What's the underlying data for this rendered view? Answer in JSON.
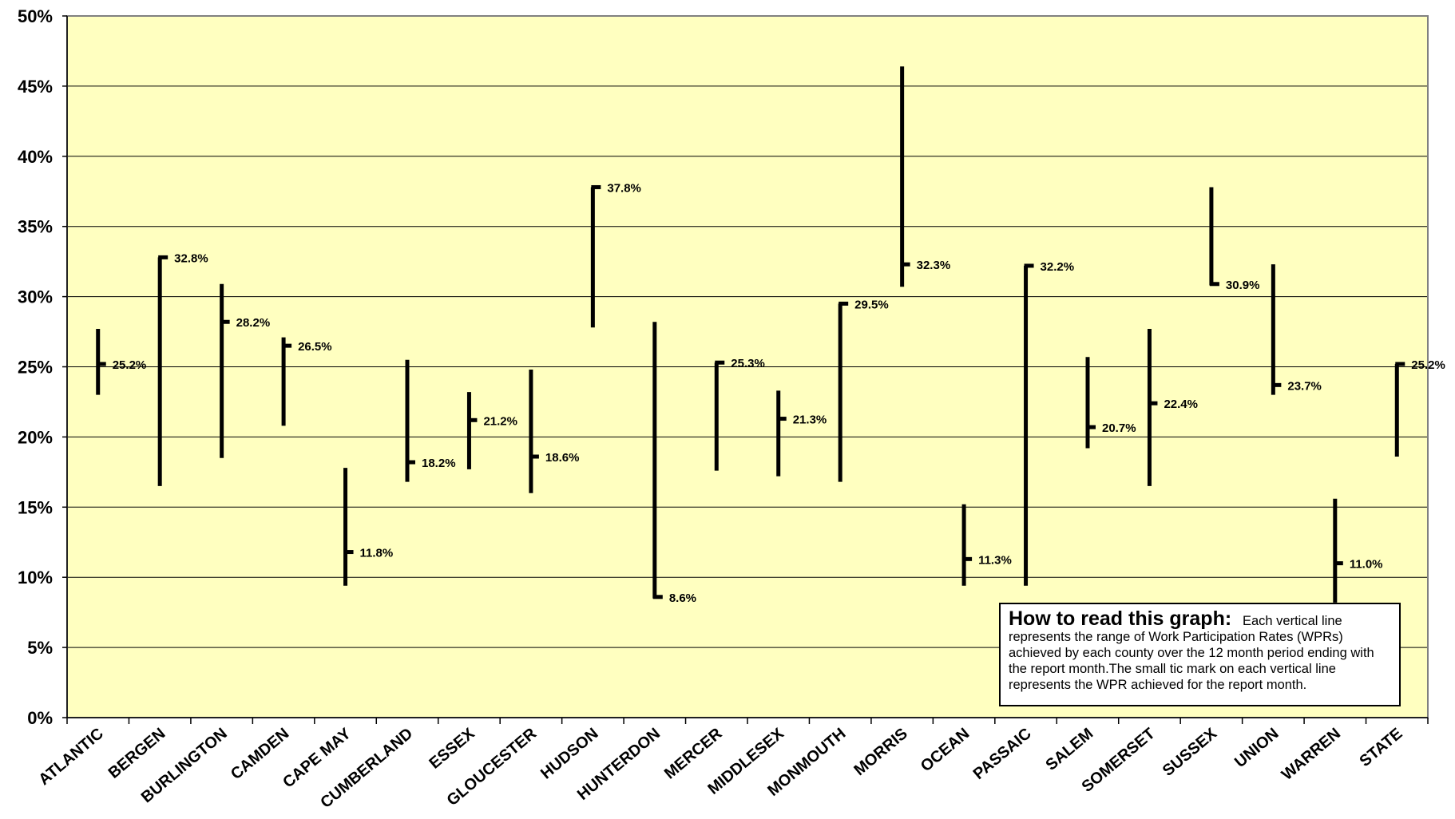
{
  "chart_data": {
    "type": "range",
    "title": "",
    "xlabel": "",
    "ylabel": "",
    "ylim": [
      0,
      50
    ],
    "y_ticks": [
      "0%",
      "5%",
      "10%",
      "15%",
      "20%",
      "25%",
      "30%",
      "35%",
      "40%",
      "45%",
      "50%"
    ],
    "grid": true,
    "categories": [
      "ATLANTIC",
      "BERGEN",
      "BURLINGTON",
      "CAMDEN",
      "CAPE MAY",
      "CUMBERLAND",
      "ESSEX",
      "GLOUCESTER",
      "HUDSON",
      "HUNTERDON",
      "MERCER",
      "MIDDLESEX",
      "MONMOUTH",
      "MORRIS",
      "OCEAN",
      "PASSAIC",
      "SALEM",
      "SOMERSET",
      "SUSSEX",
      "UNION",
      "WARREN",
      "STATE"
    ],
    "series": [
      {
        "name": "range_low",
        "values": [
          23.0,
          16.5,
          18.5,
          20.8,
          9.4,
          16.8,
          17.7,
          16.0,
          27.8,
          8.5,
          17.6,
          17.2,
          16.8,
          30.7,
          9.4,
          9.4,
          19.2,
          16.5,
          30.8,
          23.0,
          8.2,
          18.6
        ]
      },
      {
        "name": "range_high",
        "values": [
          27.7,
          32.8,
          30.9,
          27.1,
          17.8,
          25.5,
          23.2,
          24.8,
          37.8,
          28.2,
          25.3,
          23.3,
          29.5,
          46.4,
          15.2,
          32.2,
          25.7,
          27.7,
          37.8,
          32.3,
          15.6,
          25.2
        ]
      },
      {
        "name": "report_month",
        "values": [
          25.2,
          32.8,
          28.2,
          26.5,
          11.8,
          18.2,
          21.2,
          18.6,
          37.8,
          8.6,
          25.3,
          21.3,
          29.5,
          32.3,
          11.3,
          32.2,
          20.7,
          22.4,
          30.9,
          23.7,
          11.0,
          25.2
        ]
      }
    ],
    "data_labels": [
      "25.2%",
      "32.8%",
      "28.2%",
      "26.5%",
      "11.8%",
      "18.2%",
      "21.2%",
      "18.6%",
      "37.8%",
      "8.6%",
      "25.3%",
      "21.3%",
      "29.5%",
      "32.3%",
      "11.3%",
      "32.2%",
      "20.7%",
      "22.4%",
      "30.9%",
      "23.7%",
      "11.0%",
      "25.2%"
    ],
    "colors": {
      "plot_background": "#ffffc0",
      "line": "#000000",
      "grid": "#000000"
    }
  },
  "legend_note": {
    "title": "How to read this graph:",
    "body": "Each vertical line represents the range of Work Participation Rates (WPRs) achieved by each county over the 12 month period ending with the report month.The small tic mark on each vertical line represents the WPR achieved for the report month."
  }
}
